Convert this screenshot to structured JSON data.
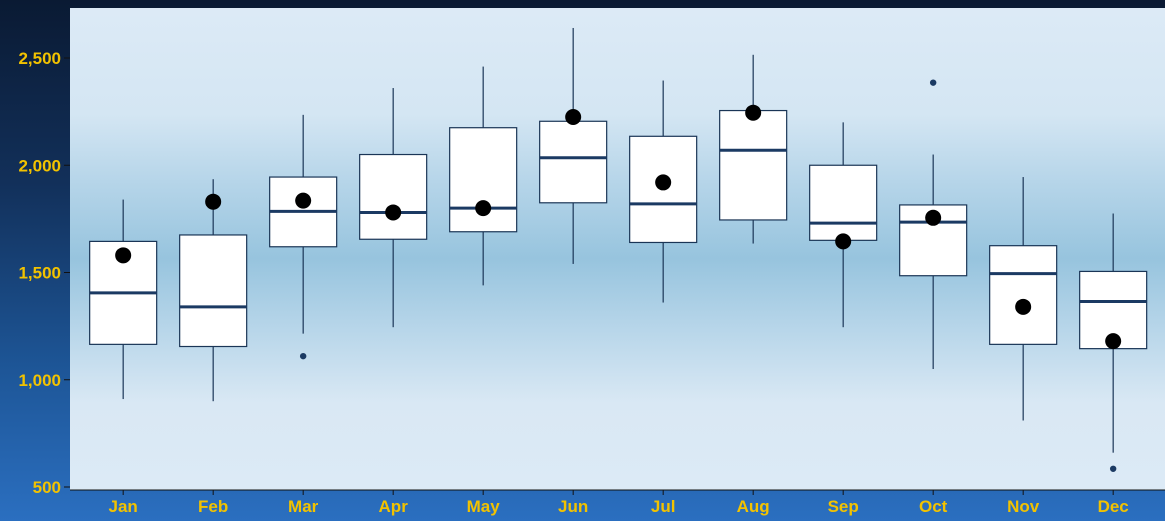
{
  "chart_data": {
    "type": "box",
    "title": "",
    "xlabel": "",
    "ylabel": "",
    "ylim": [
      500,
      2700
    ],
    "yticks": [
      500,
      1000,
      1500,
      2000,
      2500
    ],
    "ytick_labels": [
      "500",
      "1,000",
      "1,500",
      "2,000",
      "2,500"
    ],
    "grid": false,
    "legend": "none",
    "categories": [
      "Jan",
      "Feb",
      "Mar",
      "Apr",
      "May",
      "Jun",
      "Jul",
      "Aug",
      "Sep",
      "Oct",
      "Nov",
      "Dec"
    ],
    "boxes": [
      {
        "min": 910,
        "q1": 1165,
        "median": 1405,
        "q3": 1645,
        "max": 1840,
        "mean": 1580,
        "outliers": []
      },
      {
        "min": 900,
        "q1": 1155,
        "median": 1340,
        "q3": 1675,
        "max": 1935,
        "mean": 1830,
        "outliers": []
      },
      {
        "min": 1215,
        "q1": 1620,
        "median": 1785,
        "q3": 1945,
        "max": 2235,
        "mean": 1835,
        "outliers": [
          1110
        ]
      },
      {
        "min": 1245,
        "q1": 1655,
        "median": 1780,
        "q3": 2050,
        "max": 2360,
        "mean": 1780,
        "outliers": []
      },
      {
        "min": 1440,
        "q1": 1690,
        "median": 1800,
        "q3": 2175,
        "max": 2460,
        "mean": 1800,
        "outliers": []
      },
      {
        "min": 1540,
        "q1": 1825,
        "median": 2035,
        "q3": 2205,
        "max": 2640,
        "mean": 2225,
        "outliers": []
      },
      {
        "min": 1360,
        "q1": 1640,
        "median": 1820,
        "q3": 2135,
        "max": 2395,
        "mean": 1920,
        "outliers": []
      },
      {
        "min": 1635,
        "q1": 1745,
        "median": 2070,
        "q3": 2255,
        "max": 2515,
        "mean": 2245,
        "outliers": []
      },
      {
        "min": 1245,
        "q1": 1650,
        "median": 1730,
        "q3": 2000,
        "max": 2200,
        "mean": 1645,
        "outliers": []
      },
      {
        "min": 1050,
        "q1": 1485,
        "median": 1735,
        "q3": 1815,
        "max": 2050,
        "mean": 1755,
        "outliers": [
          2385
        ]
      },
      {
        "min": 810,
        "q1": 1165,
        "median": 1495,
        "q3": 1625,
        "max": 1945,
        "mean": 1340,
        "outliers": []
      },
      {
        "min": 660,
        "q1": 1145,
        "median": 1365,
        "q3": 1505,
        "max": 1775,
        "mean": 1180,
        "outliers": [
          585
        ]
      }
    ],
    "colors": {
      "box_fill": "#ffffff",
      "box_stroke": "#1a3556",
      "median": "#1b3a63",
      "mean_dot": "#000000",
      "outlier": "#1b3a63",
      "tick_label": "#f2c200",
      "axis": "#111111"
    }
  }
}
